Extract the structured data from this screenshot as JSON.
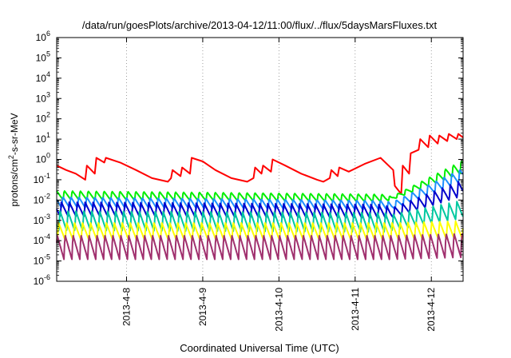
{
  "chart_data": {
    "type": "line",
    "title": "/data/run/goesPlots/archive/2013-04-12/11:00/flux/../flux/5daysMarsFluxes.txt",
    "xlabel": "Coordinated Universal Time (UTC)",
    "ylabel": "protons/cm2-s-sr-MeV",
    "ylabel_parts": {
      "base": "protons/cm",
      "sup": "2",
      "rest": "-s-sr-MeV"
    },
    "yscale": "log",
    "ylim_exp": [
      -6,
      6
    ],
    "y_ticks": [
      {
        "base": "10",
        "exp": "-6"
      },
      {
        "base": "10",
        "exp": "-5"
      },
      {
        "base": "10",
        "exp": "-4"
      },
      {
        "base": "10",
        "exp": "-3"
      },
      {
        "base": "10",
        "exp": "-2"
      },
      {
        "base": "10",
        "exp": "-1"
      },
      {
        "base": "10",
        "exp": "0"
      },
      {
        "base": "10",
        "exp": "1"
      },
      {
        "base": "10",
        "exp": "2"
      },
      {
        "base": "10",
        "exp": "3"
      },
      {
        "base": "10",
        "exp": "4"
      },
      {
        "base": "10",
        "exp": "5"
      },
      {
        "base": "10",
        "exp": "6"
      }
    ],
    "x_unit": "days",
    "xlim": [
      "2013-04-07T02:00",
      "2013-04-12T10:00"
    ],
    "x_ticks": [
      {
        "label": "2013-4-8",
        "t": "2013-04-08T00:00"
      },
      {
        "label": "2013-4-9",
        "t": "2013-04-09T00:00"
      },
      {
        "label": "2013-4-10",
        "t": "2013-04-10T00:00"
      },
      {
        "label": "2013-4-11",
        "t": "2013-04-11T00:00"
      },
      {
        "label": "2013-4-12",
        "t": "2013-04-12T00:00"
      }
    ],
    "grid": true,
    "series": [
      {
        "color": "#ff0000",
        "x": [
          "2013-04-07T02:00",
          "2013-04-07T05:00",
          "2013-04-07T08:00",
          "2013-04-07T11:00",
          "2013-04-07T11:30",
          "2013-04-07T14:00",
          "2013-04-07T14:30",
          "2013-04-07T17:00",
          "2013-04-07T17:30",
          "2013-04-07T22:00",
          "2013-04-08T03:00",
          "2013-04-08T08:00",
          "2013-04-08T13:00",
          "2013-04-08T14:00",
          "2013-04-08T14:30",
          "2013-04-08T17:00",
          "2013-04-08T17:30",
          "2013-04-08T20:00",
          "2013-04-08T20:30",
          "2013-04-09T00:00",
          "2013-04-09T04:00",
          "2013-04-09T09:00",
          "2013-04-09T14:00",
          "2013-04-09T16:00",
          "2013-04-09T16:30",
          "2013-04-09T18:30",
          "2013-04-09T19:00",
          "2013-04-09T21:30",
          "2013-04-09T22:00",
          "2013-04-10T02:00",
          "2013-04-10T07:00",
          "2013-04-10T12:00",
          "2013-04-10T14:00",
          "2013-04-10T16:00",
          "2013-04-10T16:30",
          "2013-04-10T18:30",
          "2013-04-10T19:00",
          "2013-04-10T22:00",
          "2013-04-11T03:00",
          "2013-04-11T08:00",
          "2013-04-11T12:00",
          "2013-04-11T12:30",
          "2013-04-11T14:30",
          "2013-04-11T15:00",
          "2013-04-11T17:00",
          "2013-04-11T17:30",
          "2013-04-11T20:00",
          "2013-04-11T20:30",
          "2013-04-11T23:00",
          "2013-04-11T23:30",
          "2013-04-12T02:00",
          "2013-04-12T02:30",
          "2013-04-12T05:00",
          "2013-04-12T05:30",
          "2013-04-12T08:00",
          "2013-04-12T08:30",
          "2013-04-12T10:00"
        ],
        "y": [
          0.5,
          0.3,
          0.2,
          0.1,
          0.5,
          0.2,
          1.2,
          0.7,
          1.2,
          0.7,
          0.3,
          0.12,
          0.08,
          0.12,
          0.3,
          0.15,
          0.4,
          0.2,
          1.2,
          0.8,
          0.3,
          0.12,
          0.08,
          0.12,
          0.4,
          0.2,
          0.5,
          0.25,
          1.0,
          0.5,
          0.2,
          0.1,
          0.08,
          0.12,
          0.3,
          0.15,
          0.4,
          0.25,
          0.6,
          1.2,
          0.3,
          0.05,
          0.02,
          0.5,
          0.2,
          2.0,
          3.0,
          10,
          4,
          15,
          6,
          15,
          8,
          18,
          10,
          18,
          12
        ]
      },
      {
        "color": "#00ee00",
        "x": [
          "2013-04-07T02:00",
          "2013-04-11T09:00",
          "2013-04-11T11:30",
          "2013-04-12T10:00"
        ],
        "y": [
          0.03,
          0.02,
          0.015,
          1.0
        ],
        "sawtooth": {
          "period_h": 2.5,
          "low": [
            0.01,
            0.008,
            0.01,
            0.2
          ],
          "profile": "decay"
        }
      },
      {
        "color": "#1e90ff",
        "x": [
          "2013-04-07T02:00",
          "2013-04-11T09:00",
          "2013-04-11T11:30",
          "2013-04-12T10:00"
        ],
        "y": [
          0.015,
          0.01,
          0.008,
          0.4
        ],
        "sawtooth": {
          "period_h": 2.5,
          "low": [
            0.004,
            0.003,
            0.003,
            0.08
          ],
          "profile": "decay"
        }
      },
      {
        "color": "#0000cc",
        "x": [
          "2013-04-07T02:00",
          "2013-04-11T09:00",
          "2013-04-11T11:30",
          "2013-04-12T10:00"
        ],
        "y": [
          0.008,
          0.006,
          0.004,
          0.1
        ],
        "sawtooth": {
          "period_h": 2.5,
          "low": [
            0.0015,
            0.0012,
            0.0012,
            0.015
          ],
          "profile": "decay"
        }
      },
      {
        "color": "#00c8a0",
        "x": [
          "2013-04-07T02:00",
          "2013-04-11T09:00",
          "2013-04-11T11:30",
          "2013-04-12T10:00"
        ],
        "y": [
          0.003,
          0.0025,
          0.002,
          0.01
        ],
        "sawtooth": {
          "period_h": 2.5,
          "low": [
            0.0003,
            0.00025,
            0.0003,
            0.0012
          ],
          "profile": "decay"
        }
      },
      {
        "color": "#ffff00",
        "x": [
          "2013-04-07T02:00",
          "2013-04-11T09:00",
          "2013-04-11T11:30",
          "2013-04-12T10:00"
        ],
        "y": [
          0.0008,
          0.0008,
          0.0008,
          0.001
        ],
        "sawtooth": {
          "period_h": 2.5,
          "low": [
            0.0001,
            0.0001,
            0.0001,
            0.00012
          ],
          "profile": "decay"
        }
      },
      {
        "color": "#a0306e",
        "x": [
          "2013-04-07T02:00",
          "2013-04-11T09:00",
          "2013-04-11T11:30",
          "2013-04-12T10:00"
        ],
        "y": [
          0.0002,
          0.0002,
          0.0002,
          0.00025
        ],
        "sawtooth": {
          "period_h": 2.5,
          "low": [
            1.2e-05,
            1.2e-05,
            1.2e-05,
            1.5e-05
          ],
          "profile": "decay"
        }
      }
    ]
  }
}
